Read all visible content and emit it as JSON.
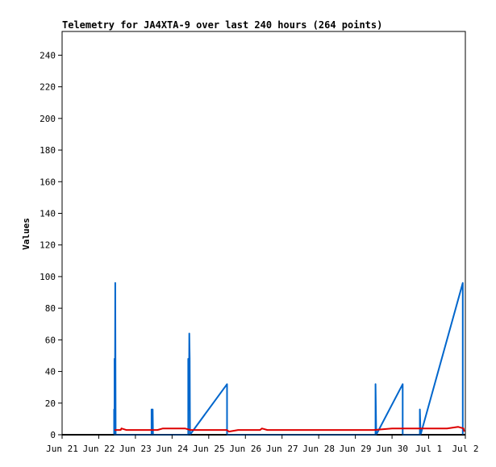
{
  "chart_data": {
    "type": "line",
    "title": "Telemetry for JA4XTA-9 over last 240 hours (264 points)",
    "xlabel": "",
    "ylabel": "Values",
    "ylim": [
      0,
      255
    ],
    "xlim": [
      0,
      11
    ],
    "x_ticks": [
      {
        "x": 0,
        "label": "Jun 21"
      },
      {
        "x": 1,
        "label": "Jun 22"
      },
      {
        "x": 2,
        "label": "Jun 23"
      },
      {
        "x": 3,
        "label": "Jun 24"
      },
      {
        "x": 4,
        "label": "Jun 25"
      },
      {
        "x": 5,
        "label": "Jun 26"
      },
      {
        "x": 6,
        "label": "Jun 27"
      },
      {
        "x": 7,
        "label": "Jun 28"
      },
      {
        "x": 8,
        "label": "Jun 29"
      },
      {
        "x": 9,
        "label": "Jun 30"
      },
      {
        "x": 10,
        "label": "Jul 1"
      },
      {
        "x": 11,
        "label": "Jul 2"
      }
    ],
    "y_ticks": [
      0,
      20,
      40,
      60,
      80,
      100,
      120,
      140,
      160,
      180,
      200,
      220,
      240
    ],
    "grid": false,
    "series": [
      {
        "color": "#0066cc",
        "points": [
          [
            1.42,
            0
          ],
          [
            1.42,
            16
          ],
          [
            1.43,
            0
          ],
          [
            1.43,
            48
          ],
          [
            1.44,
            0
          ],
          [
            1.45,
            96
          ],
          [
            1.46,
            0
          ],
          [
            2.44,
            0
          ],
          [
            2.44,
            16
          ],
          [
            2.46,
            0
          ],
          [
            2.47,
            16
          ],
          [
            2.48,
            0
          ],
          [
            3.44,
            0
          ],
          [
            3.44,
            48
          ],
          [
            3.46,
            16
          ],
          [
            3.47,
            64
          ],
          [
            3.48,
            48
          ],
          [
            3.49,
            0
          ],
          [
            4.5,
            32
          ],
          [
            4.5,
            0
          ],
          [
            8.55,
            0
          ],
          [
            8.55,
            32
          ],
          [
            8.57,
            0
          ],
          [
            9.29,
            32
          ],
          [
            9.29,
            0
          ],
          [
            9.31,
            0
          ],
          [
            9.31,
            0
          ],
          [
            9.76,
            0
          ],
          [
            9.76,
            16
          ],
          [
            9.78,
            0
          ],
          [
            10.93,
            96
          ],
          [
            10.93,
            0
          ]
        ]
      },
      {
        "color": "#dd0000",
        "points": [
          [
            1.43,
            3
          ],
          [
            1.6,
            3
          ],
          [
            1.62,
            4
          ],
          [
            1.75,
            3
          ],
          [
            2.0,
            3
          ],
          [
            2.4,
            3
          ],
          [
            2.6,
            3
          ],
          [
            2.75,
            4
          ],
          [
            3.2,
            4
          ],
          [
            3.35,
            4
          ],
          [
            3.5,
            3
          ],
          [
            4.0,
            3
          ],
          [
            4.5,
            3
          ],
          [
            4.55,
            2
          ],
          [
            4.8,
            3
          ],
          [
            5.4,
            3
          ],
          [
            5.45,
            4
          ],
          [
            5.6,
            3
          ],
          [
            6.0,
            3
          ],
          [
            6.5,
            3
          ],
          [
            7.0,
            3
          ],
          [
            7.5,
            3
          ],
          [
            8.0,
            3
          ],
          [
            8.5,
            3
          ],
          [
            9.0,
            4
          ],
          [
            9.5,
            4
          ],
          [
            10.0,
            4
          ],
          [
            10.5,
            4
          ],
          [
            10.8,
            5
          ],
          [
            10.95,
            4
          ],
          [
            10.97,
            2
          ]
        ]
      }
    ]
  }
}
